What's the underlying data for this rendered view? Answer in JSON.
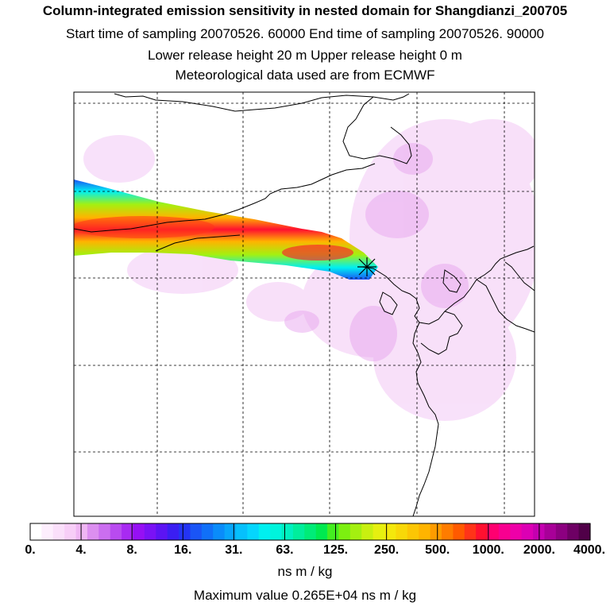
{
  "header": {
    "title": "Column-integrated emission sensitivity in nested domain for Shangdianzi_200705",
    "sampling": "Start time of sampling 20070526. 60000     End time of sampling 20070526. 90000",
    "release": "Lower release height   20 m          Upper release height    0 m",
    "met": "Meteorological data used are from ECMWF"
  },
  "map": {
    "receptor_marker": "receptor-star-marker",
    "coastline_color": "#000000",
    "gridline_style": "dashed"
  },
  "legend": {
    "tick_labels": [
      "0.",
      "4.",
      "8.",
      "16.",
      "31.",
      "63.",
      "125.",
      "250.",
      "500.",
      "1000.",
      "2000.",
      "4000."
    ],
    "units": "ns m / kg",
    "max_value": "Maximum value  0.265E+04 ns m / kg",
    "colors": [
      "#ffffff",
      "#fdeefd",
      "#fadffa",
      "#f7cef7",
      "#efb6f3",
      "#dc8ff0",
      "#cb6ef0",
      "#b94bf0",
      "#a82af2",
      "#9610f4",
      "#7a12f5",
      "#5c14f3",
      "#3b1ef2",
      "#2434f4",
      "#1a55f6",
      "#1070f8",
      "#0a8cfa",
      "#08a6fb",
      "#06c0fc",
      "#05d6fd",
      "#00f0f0",
      "#00f4dc",
      "#00f0c0",
      "#00ee9c",
      "#00ec78",
      "#00ea50",
      "#44ee20",
      "#7cf010",
      "#a4f010",
      "#c8f010",
      "#e6f010",
      "#f4e80c",
      "#f8d808",
      "#fcc604",
      "#ffb400",
      "#ff9c00",
      "#ff7c00",
      "#ff5a00",
      "#ff3418",
      "#ff1030",
      "#ff0070",
      "#f80090",
      "#ee00a8",
      "#dc00b4",
      "#c400b0",
      "#a80098",
      "#8c0080",
      "#6e0064",
      "#500048"
    ]
  }
}
